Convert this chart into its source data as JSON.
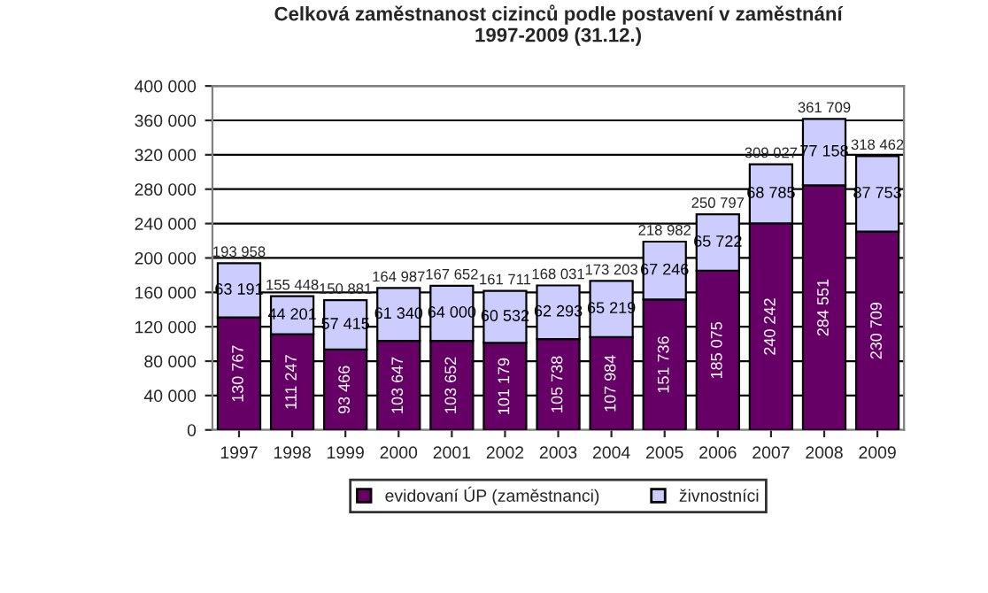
{
  "chart_data": {
    "type": "bar",
    "stacked": true,
    "title": "Celková zaměstnanost cizinců podle postavení v zaměstnání\n1997-2009 (31.12.)",
    "categories": [
      "1997",
      "1998",
      "1999",
      "2000",
      "2001",
      "2002",
      "2003",
      "2004",
      "2005",
      "2006",
      "2007",
      "2008",
      "2009"
    ],
    "series": [
      {
        "name": "evidovaní ÚP (zaměstnanci)",
        "color": "#660066",
        "values": [
          130767,
          111247,
          93466,
          103647,
          103652,
          101179,
          105738,
          107984,
          151736,
          185075,
          240242,
          284551,
          230709
        ],
        "value_labels": [
          "130 767",
          "111 247",
          "93 466",
          "103 647",
          "103 652",
          "101 179",
          "105 738",
          "107 984",
          "151 736",
          "185 075",
          "240 242",
          "284 551",
          "230 709"
        ]
      },
      {
        "name": "živnostníci",
        "color": "#ccccff",
        "values": [
          63191,
          44201,
          57415,
          61340,
          64000,
          60532,
          62293,
          65219,
          67246,
          65722,
          68785,
          77158,
          87753
        ],
        "value_labels": [
          "63 191",
          "44 201",
          "57 415",
          "61 340",
          "64 000",
          "60 532",
          "62 293",
          "65 219",
          "67 246",
          "65 722",
          "68 785",
          "77 158",
          "87 753"
        ]
      }
    ],
    "totals": [
      "193 958",
      "155 448",
      "150 881",
      "164 987",
      "167 652",
      "161 711",
      "168 031",
      "173 203",
      "218 982",
      "250 797",
      "309 027",
      "361 709",
      "318 462"
    ],
    "ylim": [
      0,
      400000
    ],
    "yticks": [
      {
        "value": 0,
        "label": "0"
      },
      {
        "value": 40000,
        "label": "40 000"
      },
      {
        "value": 80000,
        "label": "80 000"
      },
      {
        "value": 120000,
        "label": "120 000"
      },
      {
        "value": 160000,
        "label": "160 000"
      },
      {
        "value": 200000,
        "label": "200 000"
      },
      {
        "value": 240000,
        "label": "240 000"
      },
      {
        "value": 280000,
        "label": "280 000"
      },
      {
        "value": 320000,
        "label": "320 000"
      },
      {
        "value": 360000,
        "label": "360 000"
      },
      {
        "value": 400000,
        "label": "400 000"
      }
    ],
    "grid": "y",
    "legend": "bottom"
  }
}
